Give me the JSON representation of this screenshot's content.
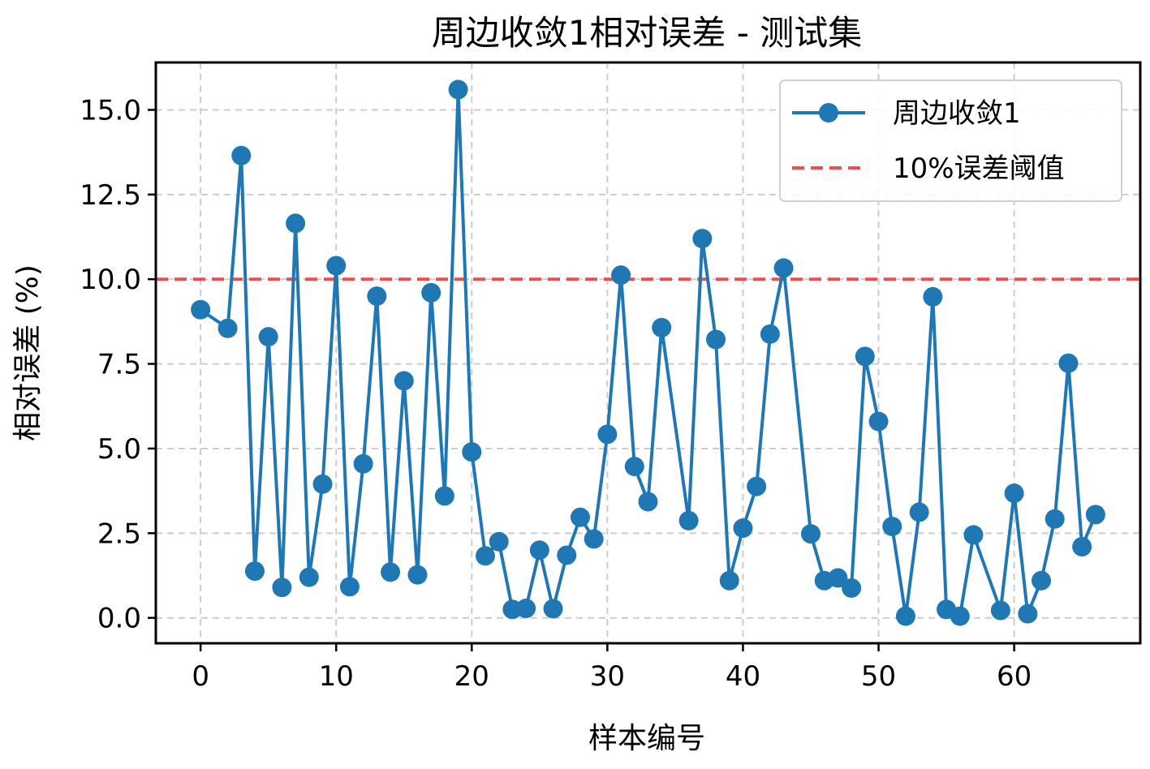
{
  "chart_data": {
    "type": "line",
    "title": "周边收敛1相对误差 - 测试集",
    "xlabel": "样本编号",
    "ylabel": "相对误差 (%)",
    "xlim": [
      -3.3,
      69.3
    ],
    "ylim": [
      -0.75,
      16.4
    ],
    "x_ticks": [
      0,
      10,
      20,
      30,
      40,
      50,
      60
    ],
    "y_ticks": [
      0.0,
      2.5,
      5.0,
      7.5,
      10.0,
      12.5,
      15.0
    ],
    "x_tick_labels": [
      "0",
      "10",
      "20",
      "30",
      "40",
      "50",
      "60"
    ],
    "y_tick_labels": [
      "0.0",
      "2.5",
      "5.0",
      "7.5",
      "10.0",
      "12.5",
      "15.0"
    ],
    "grid": true,
    "legend_position": "top-right",
    "series": [
      {
        "name": "周边收敛1",
        "color": "#1f77b4",
        "marker": "circle",
        "x": [
          0,
          2,
          3,
          4,
          5,
          6,
          7,
          8,
          9,
          10,
          11,
          12,
          13,
          14,
          15,
          16,
          17,
          18,
          19,
          20,
          21,
          22,
          23,
          24,
          25,
          26,
          27,
          28,
          29,
          30,
          31,
          32,
          33,
          34,
          36,
          37,
          38,
          39,
          40,
          41,
          42,
          43,
          45,
          46,
          47,
          48,
          49,
          50,
          51,
          52,
          53,
          54,
          55,
          56,
          57,
          59,
          60,
          61,
          62,
          63,
          64,
          65,
          66
        ],
        "values": [
          9.1,
          8.55,
          13.65,
          1.38,
          8.3,
          0.9,
          11.65,
          1.2,
          3.95,
          10.4,
          0.92,
          4.55,
          9.5,
          1.35,
          7.0,
          1.27,
          9.6,
          3.6,
          15.6,
          4.9,
          1.83,
          2.25,
          0.25,
          0.28,
          2.0,
          0.27,
          1.85,
          2.97,
          2.33,
          5.42,
          10.12,
          4.47,
          3.43,
          8.57,
          2.87,
          11.2,
          8.22,
          1.1,
          2.65,
          3.88,
          8.38,
          10.33,
          2.48,
          1.1,
          1.18,
          0.88,
          7.72,
          5.8,
          2.7,
          0.05,
          3.12,
          9.48,
          0.25,
          0.05,
          2.45,
          0.22,
          3.68,
          0.12,
          1.1,
          2.92,
          7.52,
          2.1,
          3.05
        ]
      }
    ],
    "threshold": {
      "name": "10%误差阈值",
      "value": 10.0,
      "color": "#ef4444",
      "style": "dashed"
    }
  }
}
